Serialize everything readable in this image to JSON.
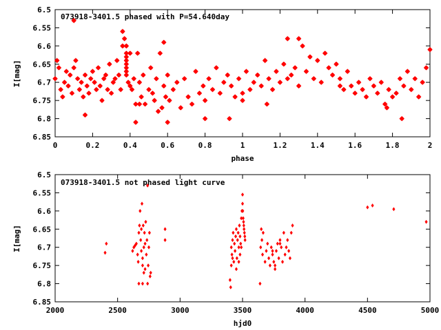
{
  "marker_color": "#ff0000",
  "chart_data": [
    {
      "type": "scatter",
      "title": "073918-3401.5 phased with P=54.640day",
      "xlabel": "phase",
      "ylabel": "I[mag]",
      "xlim": [
        0,
        2
      ],
      "ylim": [
        6.85,
        6.5
      ],
      "y_reversed": true,
      "xticks": [
        0,
        0.2,
        0.4,
        0.6,
        0.8,
        1,
        1.2,
        1.4,
        1.6,
        1.8,
        2
      ],
      "xtick_labels": [
        "0",
        "0.2",
        "0.4",
        "0.6",
        "0.8",
        "1",
        "1.2",
        "1.4",
        "1.6",
        "1.8",
        "2"
      ],
      "yticks": [
        6.5,
        6.55,
        6.6,
        6.65,
        6.7,
        6.75,
        6.8,
        6.85
      ],
      "ytick_labels": [
        "6.5",
        "6.55",
        "6.6",
        "6.65",
        "6.7",
        "6.75",
        "6.8",
        "6.85"
      ],
      "grid": false,
      "marker": "star",
      "x": [
        0.0,
        0.01,
        0.02,
        0.03,
        0.04,
        0.05,
        0.06,
        0.07,
        0.08,
        0.09,
        0.1,
        0.11,
        0.12,
        0.13,
        0.14,
        0.15,
        0.16,
        0.17,
        0.18,
        0.19,
        0.2,
        0.21,
        0.22,
        0.23,
        0.24,
        0.25,
        0.26,
        0.27,
        0.28,
        0.29,
        0.3,
        0.31,
        0.32,
        0.33,
        0.34,
        0.35,
        0.36,
        0.37,
        0.38,
        0.38,
        0.38,
        0.38,
        0.38,
        0.38,
        0.38,
        0.38,
        0.39,
        0.4,
        0.41,
        0.42,
        0.43,
        0.44,
        0.45,
        0.46,
        0.47,
        0.48,
        0.5,
        0.51,
        0.52,
        0.53,
        0.54,
        0.55,
        0.56,
        0.57,
        0.58,
        0.59,
        0.6,
        0.61,
        0.63,
        0.65,
        0.67,
        0.69,
        0.71,
        0.73,
        0.75,
        0.77,
        0.79,
        0.8,
        0.82,
        0.84,
        0.86,
        0.88,
        0.9,
        0.92,
        0.94,
        0.96,
        0.98,
        1.0,
        1.02,
        1.04,
        1.06,
        1.08,
        1.1,
        1.12,
        1.14,
        1.16,
        1.18,
        1.2,
        1.22,
        1.24,
        1.26,
        1.28,
        1.3,
        1.32,
        1.34,
        1.36,
        1.38,
        1.4,
        1.42,
        1.44,
        1.46,
        1.48,
        1.5,
        1.52,
        1.54,
        1.56,
        1.58,
        1.6,
        1.62,
        1.64,
        1.66,
        1.68,
        1.7,
        1.72,
        1.74,
        1.76,
        1.78,
        1.8,
        1.82,
        1.84,
        1.86,
        1.88,
        1.9,
        1.92,
        1.94,
        1.96,
        1.98,
        2.0,
        0.1,
        0.36,
        0.58,
        0.43,
        0.4,
        0.6,
        0.16,
        0.93,
        1.24,
        1.0,
        0.8,
        1.3,
        1.85,
        0.45,
        1.13,
        1.52,
        1.77
      ],
      "y": [
        6.69,
        6.64,
        6.66,
        6.72,
        6.74,
        6.7,
        6.67,
        6.71,
        6.68,
        6.73,
        6.66,
        6.64,
        6.69,
        6.72,
        6.7,
        6.74,
        6.68,
        6.71,
        6.73,
        6.69,
        6.67,
        6.7,
        6.72,
        6.66,
        6.71,
        6.75,
        6.69,
        6.68,
        6.72,
        6.65,
        6.73,
        6.7,
        6.69,
        6.64,
        6.68,
        6.72,
        6.56,
        6.58,
        6.6,
        6.62,
        6.63,
        6.64,
        6.65,
        6.66,
        6.67,
        6.68,
        6.7,
        6.71,
        6.72,
        6.69,
        6.76,
        6.62,
        6.7,
        6.74,
        6.68,
        6.76,
        6.72,
        6.66,
        6.73,
        6.75,
        6.69,
        6.78,
        6.62,
        6.77,
        6.71,
        6.74,
        6.68,
        6.75,
        6.72,
        6.7,
        6.77,
        6.69,
        6.74,
        6.76,
        6.67,
        6.73,
        6.71,
        6.75,
        6.69,
        6.72,
        6.66,
        6.73,
        6.7,
        6.68,
        6.71,
        6.74,
        6.69,
        6.73,
        6.67,
        6.72,
        6.7,
        6.68,
        6.71,
        6.64,
        6.69,
        6.72,
        6.67,
        6.7,
        6.65,
        6.69,
        6.68,
        6.66,
        6.71,
        6.6,
        6.67,
        6.63,
        6.69,
        6.64,
        6.7,
        6.62,
        6.66,
        6.68,
        6.65,
        6.69,
        6.72,
        6.67,
        6.71,
        6.73,
        6.7,
        6.72,
        6.74,
        6.69,
        6.71,
        6.73,
        6.7,
        6.76,
        6.72,
        6.74,
        6.73,
        6.69,
        6.71,
        6.67,
        6.72,
        6.69,
        6.74,
        6.7,
        6.66,
        6.61,
        6.53,
        6.6,
        6.59,
        6.81,
        6.62,
        6.81,
        6.79,
        6.8,
        6.58,
        6.75,
        6.8,
        6.58,
        6.8,
        6.76,
        6.76,
        6.71,
        6.77
      ],
      "x_all": [
        0.1,
        0.36,
        0.58
      ],
      "y_note": ""
    },
    {
      "type": "scatter",
      "title": "073918-3401.5 not phased light curve",
      "xlabel": "hjd0",
      "ylabel": "I[mag]",
      "xlim": [
        2000,
        5000
      ],
      "ylim": [
        6.85,
        6.5
      ],
      "y_reversed": true,
      "xticks": [
        2000,
        2500,
        3000,
        3500,
        4000,
        4500,
        5000
      ],
      "xtick_labels": [
        "2000",
        "2500",
        "3000",
        "3500",
        "4000",
        "4500",
        "5000"
      ],
      "yticks": [
        6.5,
        6.55,
        6.6,
        6.65,
        6.7,
        6.75,
        6.8,
        6.85
      ],
      "ytick_labels": [
        "6.5",
        "6.55",
        "6.6",
        "6.65",
        "6.7",
        "6.75",
        "6.8",
        "6.85"
      ],
      "grid": false,
      "marker": "diamond",
      "x": [
        2400,
        2410,
        2620,
        2630,
        2640,
        2650,
        2660,
        2665,
        2670,
        2675,
        2680,
        2685,
        2690,
        2695,
        2700,
        2700,
        2705,
        2710,
        2710,
        2715,
        2720,
        2720,
        2725,
        2730,
        2735,
        2740,
        2745,
        2750,
        2755,
        2760,
        2765,
        2740,
        2700,
        2690,
        2670,
        2880,
        2880,
        3400,
        3405,
        3410,
        3415,
        3420,
        3425,
        3430,
        3435,
        3440,
        3445,
        3450,
        3455,
        3460,
        3465,
        3470,
        3475,
        3480,
        3485,
        3490,
        3495,
        3500,
        3500,
        3502,
        3505,
        3508,
        3510,
        3512,
        3515,
        3518,
        3520,
        3490,
        3480,
        3470,
        3450,
        3420,
        3410,
        3640,
        3645,
        3650,
        3655,
        3660,
        3665,
        3680,
        3690,
        3700,
        3710,
        3720,
        3730,
        3740,
        3750,
        3760,
        3770,
        3780,
        3790,
        3800,
        3810,
        3820,
        3830,
        3840,
        3850,
        3860,
        3870,
        3880,
        3890,
        3900,
        3800,
        3760,
        3740,
        4500,
        4540,
        4710,
        4970
      ],
      "y": [
        6.715,
        6.69,
        6.71,
        6.7,
        6.695,
        6.69,
        6.72,
        6.74,
        6.66,
        6.64,
        6.6,
        6.68,
        6.65,
        6.58,
        6.73,
        6.75,
        6.64,
        6.7,
        6.77,
        6.66,
        6.69,
        6.76,
        6.63,
        6.72,
        6.68,
        6.8,
        6.75,
        6.7,
        6.66,
        6.78,
        6.77,
        6.53,
        6.8,
        6.71,
        6.8,
        6.65,
        6.68,
        6.79,
        6.81,
        6.7,
        6.72,
        6.68,
        6.66,
        6.74,
        6.69,
        6.71,
        6.67,
        6.65,
        6.73,
        6.68,
        6.66,
        6.7,
        6.64,
        6.67,
        6.69,
        6.62,
        6.6,
        6.555,
        6.58,
        6.6,
        6.62,
        6.63,
        6.64,
        6.65,
        6.66,
        6.67,
        6.68,
        6.7,
        6.72,
        6.74,
        6.76,
        6.73,
        6.75,
        6.8,
        6.7,
        6.65,
        6.68,
        6.72,
        6.66,
        6.74,
        6.71,
        6.69,
        6.73,
        6.75,
        6.7,
        6.72,
        6.74,
        6.76,
        6.71,
        6.69,
        6.73,
        6.68,
        6.7,
        6.74,
        6.66,
        6.72,
        6.7,
        6.68,
        6.71,
        6.73,
        6.66,
        6.64,
        6.69,
        6.75,
        6.71,
        6.59,
        6.585,
        6.595,
        6.63
      ]
    }
  ]
}
